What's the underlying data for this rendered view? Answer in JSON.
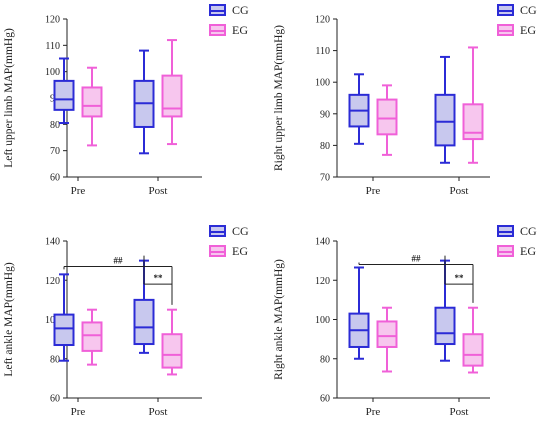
{
  "chart_data": [
    {
      "type": "box",
      "ylabel": "Left upper limb MAP(mmHg)",
      "ylim": [
        60,
        120
      ],
      "yticks": [
        "60",
        "70",
        "80",
        "90",
        "100",
        "110",
        "120"
      ],
      "categories": [
        "Pre",
        "Post"
      ],
      "legend": [
        "CG",
        "EG"
      ],
      "series": [
        {
          "name": "CG",
          "color": "#2b2bd6",
          "fill": "#c8c8ee",
          "boxes": [
            {
              "min": 80.5,
              "q1": 85.5,
              "median": 89.5,
              "q3": 96.5,
              "max": 105
            },
            {
              "min": 69,
              "q1": 79,
              "median": 88,
              "q3": 96.5,
              "max": 108
            }
          ]
        },
        {
          "name": "EG",
          "color": "#f060d8",
          "fill": "#f7c6ee",
          "boxes": [
            {
              "min": 72,
              "q1": 83,
              "median": 87,
              "q3": 94,
              "max": 101.5
            },
            {
              "min": 72.5,
              "q1": 83,
              "median": 86,
              "q3": 98.5,
              "max": 112
            }
          ]
        }
      ],
      "annotations": []
    },
    {
      "type": "box",
      "ylabel": "Right upper limb MAP(mmHg)",
      "ylim": [
        70,
        120
      ],
      "yticks": [
        "70",
        "80",
        "90",
        "100",
        "110",
        "120"
      ],
      "categories": [
        "Pre",
        "Post"
      ],
      "legend": [
        "CG",
        "EG"
      ],
      "series": [
        {
          "name": "CG",
          "color": "#2b2bd6",
          "fill": "#c8c8ee",
          "boxes": [
            {
              "min": 80.5,
              "q1": 86,
              "median": 91,
              "q3": 96,
              "max": 102.5
            },
            {
              "min": 74.5,
              "q1": 80,
              "median": 87.5,
              "q3": 96,
              "max": 108
            }
          ]
        },
        {
          "name": "EG",
          "color": "#f060d8",
          "fill": "#f7c6ee",
          "boxes": [
            {
              "min": 77,
              "q1": 83.5,
              "median": 88.5,
              "q3": 94.5,
              "max": 99
            },
            {
              "min": 74.5,
              "q1": 82,
              "median": 84,
              "q3": 93,
              "max": 111
            }
          ]
        }
      ],
      "annotations": []
    },
    {
      "type": "box",
      "ylabel": "Left ankle MAP(mmHg)",
      "ylim": [
        60,
        140
      ],
      "yticks": [
        "60",
        "80",
        "100",
        "120",
        "140"
      ],
      "categories": [
        "Pre",
        "Post"
      ],
      "legend": [
        "CG",
        "EG"
      ],
      "series": [
        {
          "name": "CG",
          "color": "#2b2bd6",
          "fill": "#c8c8ee",
          "boxes": [
            {
              "min": 79,
              "q1": 87,
              "median": 95.5,
              "q3": 102.5,
              "max": 123
            },
            {
              "min": 83,
              "q1": 87.5,
              "median": 96,
              "q3": 110,
              "max": 130
            }
          ]
        },
        {
          "name": "EG",
          "color": "#f060d8",
          "fill": "#f7c6ee",
          "boxes": [
            {
              "min": 77,
              "q1": 84,
              "median": 92,
              "q3": 98.5,
              "max": 105
            },
            {
              "min": 72,
              "q1": 75.5,
              "median": 82,
              "q3": 92.5,
              "max": 105
            }
          ]
        }
      ],
      "annotations": [
        {
          "text": "##",
          "from": [
            1,
            0
          ],
          "to": [
            2,
            1
          ],
          "level": 127
        },
        {
          "text": "**",
          "from": [
            2,
            0
          ],
          "to": [
            2,
            1
          ],
          "level": 118
        }
      ]
    },
    {
      "type": "box",
      "ylabel": "Right ankle MAP(mmHg)",
      "ylim": [
        60,
        140
      ],
      "yticks": [
        "60",
        "80",
        "100",
        "120",
        "140"
      ],
      "categories": [
        "Pre",
        "Post"
      ],
      "legend": [
        "CG",
        "EG"
      ],
      "series": [
        {
          "name": "CG",
          "color": "#2b2bd6",
          "fill": "#c8c8ee",
          "boxes": [
            {
              "min": 80,
              "q1": 86,
              "median": 94.5,
              "q3": 103,
              "max": 126.5
            },
            {
              "min": 79,
              "q1": 87.5,
              "median": 93,
              "q3": 106,
              "max": 130
            }
          ]
        },
        {
          "name": "EG",
          "color": "#f060d8",
          "fill": "#f7c6ee",
          "boxes": [
            {
              "min": 73.5,
              "q1": 86,
              "median": 91.5,
              "q3": 99,
              "max": 106
            },
            {
              "min": 73,
              "q1": 76.5,
              "median": 82,
              "q3": 92.5,
              "max": 106
            }
          ]
        }
      ],
      "annotations": [
        {
          "text": "##",
          "from": [
            1,
            0
          ],
          "to": [
            2,
            1
          ],
          "level": 128
        },
        {
          "text": "**",
          "from": [
            2,
            0
          ],
          "to": [
            2,
            1
          ],
          "level": 118
        }
      ]
    }
  ]
}
